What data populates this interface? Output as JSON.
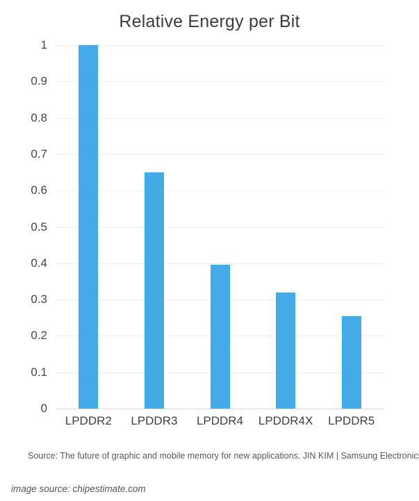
{
  "chart_data": {
    "type": "bar",
    "title": "Relative Energy per Bit",
    "categories": [
      "LPDDR2",
      "LPDDR3",
      "LPDDR4",
      "LPDDR4X",
      "LPDDR5"
    ],
    "values": [
      1,
      0.65,
      0.395,
      0.32,
      0.255
    ],
    "xlabel": "",
    "ylabel": "",
    "ylim": [
      0,
      1
    ],
    "yticks": [
      0,
      0.1,
      0.2,
      0.3,
      0.4,
      0.5,
      0.6,
      0.7,
      0.8,
      0.9,
      1
    ],
    "ytick_labels": [
      "0",
      "0.1",
      "0.2",
      "0.3",
      "0.4",
      "0.5",
      "0.6",
      "0.7",
      "0.8",
      "0.9",
      "1"
    ],
    "grid": true,
    "legend": false,
    "bar_color": "#42abe8",
    "bar_edge_color": "#2fb4f0",
    "gridline_color": "#ececec",
    "baseline_color": "#d9d9d9"
  },
  "footer": {
    "source": "Source: The future of graphic and mobile memory for new applications. JIN KIM | Samsung Electronics",
    "image_source": "image source: chipestimate.com"
  }
}
